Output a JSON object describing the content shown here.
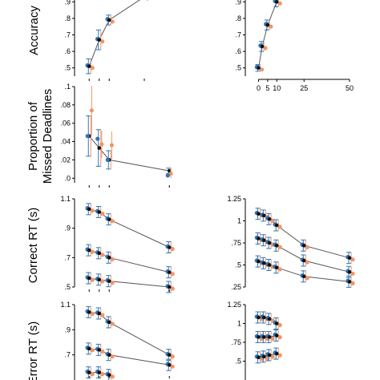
{
  "colors": {
    "black": "#111111",
    "blue": "#2f74b5",
    "orange": "#f0956a",
    "line": "#555555"
  },
  "labels": {
    "accuracy": "Accuracy",
    "missed_line1": "Proportion of",
    "missed_line2": "Missed Deadlines",
    "correct_rt": "Correct RT (s)",
    "error_rt": "Error RT (s)"
  },
  "chart_data": [
    {
      "id": "accuracy-left",
      "type": "line",
      "ylabel": "Accuracy",
      "xlim": [
        0,
        20
      ],
      "ylim": [
        0.45,
        0.95
      ],
      "yticks": [
        0.5,
        0.6,
        0.7,
        0.8,
        0.9
      ],
      "ytick_labels": [
        ".5",
        ".6",
        ".7",
        ".8",
        ".9"
      ],
      "series": [
        {
          "values": [
            [
              1,
              0.51
            ],
            [
              3,
              0.67
            ],
            [
              5,
              0.79
            ],
            [
              12,
              0.93
            ]
          ],
          "yerr": [
            0.045,
            0.06,
            0.03,
            0
          ]
        }
      ]
    },
    {
      "id": "accuracy-right",
      "type": "line",
      "xlim": [
        -2,
        50
      ],
      "ylim": [
        0.45,
        0.95
      ],
      "xticks": [
        0,
        5,
        10,
        25,
        50
      ],
      "xtick_labels": [
        "0",
        "5",
        "10",
        "25",
        "50"
      ],
      "yticks": [
        0.5,
        0.6,
        0.7,
        0.8,
        0.9
      ],
      "ytick_labels": [
        ".5",
        ".6",
        ".7",
        ".8",
        ".9"
      ],
      "series": [
        {
          "values": [
            [
              0,
              0.5
            ],
            [
              2,
              0.63
            ],
            [
              5,
              0.76
            ],
            [
              10,
              0.9
            ]
          ],
          "yerr": [
            0.02,
            0.03,
            0.03,
            0.03
          ]
        }
      ]
    },
    {
      "id": "missed-deadlines",
      "type": "line",
      "ylabel": "Proportion of Missed Deadlines",
      "xlim": [
        0,
        20
      ],
      "ylim": [
        -0.005,
        0.1
      ],
      "yticks": [
        0,
        0.02,
        0.04,
        0.06,
        0.08,
        0.1
      ],
      "ytick_labels": [
        ".0",
        ".02",
        ".04",
        ".06",
        ".08",
        ".1"
      ],
      "series": [
        {
          "values": [
            [
              1,
              0.046
            ],
            [
              3,
              0.033
            ],
            [
              5,
              0.02
            ],
            [
              17,
              0.008
            ]
          ],
          "yerr": [
            0.022,
            0.02,
            0.01,
            0.003
          ]
        }
      ],
      "blue_points": [
        [
          1,
          0.046
        ],
        [
          3,
          0.043
        ],
        [
          5,
          0.02
        ],
        [
          17,
          0.003
        ]
      ],
      "orange_points": [
        [
          1.5,
          0.074
        ],
        [
          3.5,
          0.037
        ],
        [
          5.5,
          0.036
        ],
        [
          17.3,
          0.005
        ]
      ],
      "orange_err": [
        0.027,
        0.015,
        0.015,
        0.005
      ]
    },
    {
      "id": "correct-rt-left",
      "type": "line",
      "ylabel": "Correct RT (s)",
      "xlim": [
        0,
        20
      ],
      "ylim": [
        0.5,
        1.1
      ],
      "yticks": [
        0.5,
        0.7,
        0.9,
        1.1
      ],
      "ytick_labels": [
        ".5",
        ".7",
        ".9",
        "1.1"
      ],
      "series": [
        {
          "values": [
            [
              1,
              1.03
            ],
            [
              3,
              1.01
            ],
            [
              5,
              0.96
            ],
            [
              17,
              0.77
            ]
          ]
        },
        {
          "values": [
            [
              1,
              0.75
            ],
            [
              3,
              0.73
            ],
            [
              5,
              0.7
            ],
            [
              17,
              0.6
            ]
          ]
        },
        {
          "values": [
            [
              1,
              0.56
            ],
            [
              3,
              0.55
            ],
            [
              5,
              0.54
            ],
            [
              17,
              0.5
            ]
          ]
        }
      ]
    },
    {
      "id": "correct-rt-right",
      "type": "line",
      "xlim": [
        -2,
        50
      ],
      "ylim": [
        0.25,
        1.25
      ],
      "yticks": [
        0.25,
        0.5,
        0.75,
        1,
        1.25
      ],
      "ytick_labels": [
        ".25",
        ".5",
        ".75",
        "1",
        "1.25"
      ],
      "series": [
        {
          "values": [
            [
              0,
              1.08
            ],
            [
              3,
              1.06
            ],
            [
              6,
              1.02
            ],
            [
              10,
              0.95
            ],
            [
              25,
              0.72
            ],
            [
              50,
              0.58
            ]
          ]
        },
        {
          "values": [
            [
              0,
              0.8
            ],
            [
              3,
              0.78
            ],
            [
              6,
              0.75
            ],
            [
              10,
              0.72
            ],
            [
              25,
              0.55
            ],
            [
              50,
              0.42
            ]
          ]
        },
        {
          "values": [
            [
              0,
              0.54
            ],
            [
              3,
              0.52
            ],
            [
              6,
              0.5
            ],
            [
              10,
              0.47
            ],
            [
              25,
              0.37
            ],
            [
              50,
              0.31
            ]
          ]
        }
      ]
    },
    {
      "id": "error-rt-left",
      "type": "line",
      "ylabel": "Error RT (s)",
      "xlim": [
        0,
        20
      ],
      "ylim": [
        0.5,
        1.1
      ],
      "yticks": [
        0.7,
        0.9,
        1.1
      ],
      "ytick_labels": [
        ".7",
        ".9",
        "1.1"
      ],
      "series": [
        {
          "values": [
            [
              1,
              1.04
            ],
            [
              3,
              1.03
            ],
            [
              5,
              0.96
            ],
            [
              17,
              0.7
            ]
          ]
        },
        {
          "values": [
            [
              1,
              0.75
            ],
            [
              3,
              0.74
            ],
            [
              5,
              0.7
            ],
            [
              17,
              0.62
            ]
          ]
        },
        {
          "values": [
            [
              1,
              0.56
            ],
            [
              3,
              0.56
            ],
            [
              5,
              0.54
            ]
          ]
        }
      ]
    },
    {
      "id": "error-rt-right",
      "type": "line",
      "xlim": [
        -2,
        50
      ],
      "ylim": [
        0.25,
        1.25
      ],
      "yticks": [
        0.5,
        0.75,
        1,
        1.25
      ],
      "ytick_labels": [
        ".5",
        ".75",
        "1",
        "1.25"
      ],
      "series": [
        {
          "values": [
            [
              0,
              1.08
            ],
            [
              3,
              1.08
            ],
            [
              6,
              1.06
            ],
            [
              10,
              1.0
            ]
          ]
        },
        {
          "values": [
            [
              0,
              0.82
            ],
            [
              3,
              0.82
            ],
            [
              6,
              0.82
            ],
            [
              10,
              0.84
            ]
          ]
        },
        {
          "values": [
            [
              0,
              0.55
            ],
            [
              3,
              0.56
            ],
            [
              6,
              0.58
            ],
            [
              10,
              0.6
            ]
          ]
        }
      ]
    }
  ]
}
